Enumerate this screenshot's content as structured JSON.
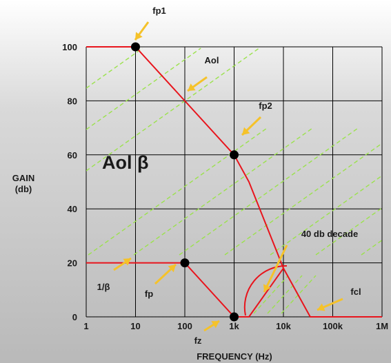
{
  "chart_data": {
    "type": "line",
    "title": "",
    "xlabel": "FREQUENCY (Hz)",
    "ylabel": "GAIN (db)",
    "x_scale": "log",
    "xlim": [
      1,
      1000000
    ],
    "ylim": [
      0,
      100
    ],
    "x_tick_labels": [
      "1",
      "10",
      "100",
      "1k",
      "10k",
      "100k",
      "1M"
    ],
    "y_tick_labels": [
      "0",
      "20",
      "40",
      "60",
      "80",
      "100"
    ],
    "grid": true,
    "series": [
      {
        "name": "Aol",
        "x": [
          1,
          10,
          1000,
          2000,
          10000,
          35000,
          1000000
        ],
        "y": [
          100,
          100,
          60,
          50,
          18,
          0,
          0
        ]
      },
      {
        "name": "1/β",
        "x": [
          1,
          100,
          1000,
          2000,
          10000
        ],
        "y": [
          20,
          20,
          0,
          0,
          18
        ]
      }
    ],
    "points": [
      {
        "label": "fp1",
        "x": 10,
        "y": 100
      },
      {
        "label": "fp2",
        "x": 1000,
        "y": 60
      },
      {
        "label": "fp",
        "x": 100,
        "y": 20
      },
      {
        "label": "fz",
        "x": 1000,
        "y": 0
      }
    ],
    "annotations": {
      "fp1": "fp1",
      "aol": "Aol",
      "fp2": "fp2",
      "aol_beta": "Aol β",
      "forty_db": "40 db decade",
      "inv_beta": "1/β",
      "fp": "fp",
      "fz": "fz",
      "fcl": "fcl"
    },
    "colors": {
      "response": "#e8141c",
      "hatch": "#9be24c",
      "arrow": "#f5c22a",
      "marker": "#000000",
      "grid": "#000000"
    }
  }
}
